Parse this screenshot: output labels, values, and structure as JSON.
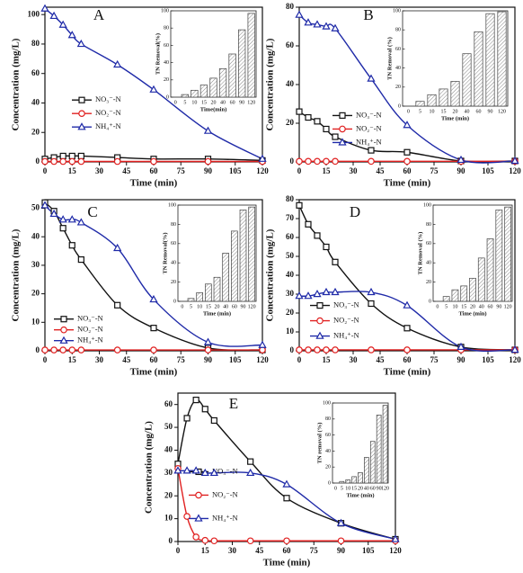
{
  "chart_data": [
    {
      "type": "line",
      "label": "A",
      "xlabel": "Time (min)",
      "ylabel": "Concentration (mg/L)",
      "x": [
        0,
        5,
        10,
        15,
        20,
        40,
        60,
        90,
        120
      ],
      "xlim": [
        0,
        120
      ],
      "xticks": [
        0,
        15,
        30,
        45,
        60,
        75,
        90,
        105,
        120
      ],
      "ylim": [
        0,
        105
      ],
      "yticks": [
        0,
        20,
        40,
        60,
        80,
        100
      ],
      "series": [
        {
          "name": "NO₃⁻-N",
          "color": "#111111",
          "marker": "square",
          "values": [
            2,
            3,
            4,
            4,
            4,
            3,
            2,
            2,
            1
          ]
        },
        {
          "name": "NO₂⁻-N",
          "color": "#e02020",
          "marker": "circle",
          "values": [
            0.3,
            0.3,
            0.3,
            0.3,
            0.3,
            0.3,
            0.3,
            0.3,
            0.3
          ]
        },
        {
          "name": "NH₄⁺-N",
          "color": "#1f2aa8",
          "marker": "triangle",
          "values": [
            104,
            99,
            93,
            86,
            80,
            66,
            49,
            21,
            2
          ]
        }
      ],
      "inset": {
        "type": "bar",
        "xlabel": "Time(min)",
        "ylabel": "TN Removal(%)",
        "categories": [
          "0",
          "5",
          "10",
          "15",
          "20",
          "40",
          "60",
          "90",
          "120"
        ],
        "values": [
          0,
          3,
          8,
          14,
          22,
          33,
          50,
          78,
          97
        ],
        "ylim": [
          0,
          100
        ],
        "yticks": [
          0,
          20,
          40,
          60,
          80,
          100
        ]
      }
    },
    {
      "type": "line",
      "label": "B",
      "xlabel": "Time (min)",
      "ylabel": "Concentration (mg/L)",
      "x": [
        0,
        5,
        10,
        15,
        20,
        40,
        60,
        90,
        120
      ],
      "xlim": [
        0,
        120
      ],
      "xticks": [
        0,
        15,
        30,
        45,
        60,
        75,
        90,
        105,
        120
      ],
      "ylim": [
        0,
        80
      ],
      "yticks": [
        0,
        20,
        40,
        60,
        80
      ],
      "series": [
        {
          "name": "NO₃⁻-N",
          "color": "#111111",
          "marker": "square",
          "values": [
            26,
            23,
            21,
            17,
            13,
            6,
            5,
            0.5,
            0.5
          ]
        },
        {
          "name": "NO₂⁻-N",
          "color": "#e02020",
          "marker": "circle",
          "values": [
            0.3,
            0.3,
            0.3,
            0.3,
            0.3,
            0.3,
            0.3,
            0.3,
            0.3
          ]
        },
        {
          "name": "NH₄⁺-N",
          "color": "#1f2aa8",
          "marker": "triangle",
          "values": [
            76,
            72,
            71,
            70,
            69,
            43,
            19,
            1,
            0.5
          ]
        }
      ],
      "inset": {
        "type": "bar",
        "xlabel": "Time (min)",
        "ylabel": "TN Removal (%)",
        "categories": [
          "0",
          "5",
          "10",
          "15",
          "20",
          "40",
          "60",
          "90",
          "120"
        ],
        "values": [
          0,
          5,
          12,
          18,
          26,
          55,
          78,
          97,
          99
        ],
        "ylim": [
          0,
          100
        ],
        "yticks": [
          0,
          20,
          40,
          60,
          80,
          100
        ]
      }
    },
    {
      "type": "line",
      "label": "C",
      "xlabel": "Time (min)",
      "ylabel": "Concentration (mg/L)",
      "x": [
        0,
        5,
        10,
        15,
        20,
        40,
        60,
        90,
        120
      ],
      "xlim": [
        0,
        120
      ],
      "xticks": [
        0,
        15,
        30,
        45,
        60,
        75,
        90,
        105,
        120
      ],
      "ylim": [
        0,
        53
      ],
      "yticks": [
        0,
        10,
        20,
        30,
        40,
        50
      ],
      "series": [
        {
          "name": "NO₃⁻-N",
          "color": "#111111",
          "marker": "square",
          "values": [
            52,
            49,
            43,
            37,
            32,
            16,
            8,
            1,
            0.3
          ]
        },
        {
          "name": "NO₂⁻-N",
          "color": "#e02020",
          "marker": "circle",
          "values": [
            0.3,
            0.3,
            0.3,
            0.3,
            0.3,
            0.3,
            0.3,
            0.3,
            0.3
          ]
        },
        {
          "name": "NH₄⁺-N",
          "color": "#1f2aa8",
          "marker": "triangle",
          "values": [
            51,
            48,
            46,
            46,
            45,
            36,
            18,
            3,
            2
          ]
        }
      ],
      "inset": {
        "type": "bar",
        "xlabel": "Time (min)",
        "ylabel": "TN Removal(%)",
        "categories": [
          "0",
          "5",
          "10",
          "15",
          "20",
          "40",
          "60",
          "90",
          "120"
        ],
        "values": [
          0,
          3,
          9,
          18,
          25,
          50,
          73,
          95,
          98
        ],
        "ylim": [
          0,
          100
        ],
        "yticks": [
          0,
          20,
          40,
          60,
          80,
          100
        ]
      }
    },
    {
      "type": "line",
      "label": "D",
      "xlabel": "Time (min)",
      "ylabel": "Concentration (mg/L)",
      "x": [
        0,
        5,
        10,
        15,
        20,
        40,
        60,
        90,
        120
      ],
      "xlim": [
        0,
        120
      ],
      "xticks": [
        0,
        15,
        30,
        45,
        60,
        75,
        90,
        105,
        120
      ],
      "ylim": [
        0,
        80
      ],
      "yticks": [
        0,
        10,
        20,
        30,
        40,
        50,
        60,
        70,
        80
      ],
      "series": [
        {
          "name": "NO₃⁻-N",
          "color": "#111111",
          "marker": "square",
          "values": [
            77,
            67,
            61,
            55,
            47,
            25,
            12,
            2,
            0.5
          ]
        },
        {
          "name": "NO₂⁻-N",
          "color": "#e02020",
          "marker": "circle",
          "values": [
            0.5,
            0.5,
            0.5,
            0.5,
            0.5,
            0.5,
            0.5,
            0.5,
            0.5
          ]
        },
        {
          "name": "NH₄⁺-N",
          "color": "#1f2aa8",
          "marker": "triangle",
          "values": [
            29,
            29,
            30,
            31,
            31,
            31,
            24,
            2,
            0.5
          ]
        }
      ],
      "inset": {
        "type": "bar",
        "xlabel": "Time (min)",
        "ylabel": "TN Removal (%)",
        "categories": [
          "0",
          "5",
          "10",
          "15",
          "20",
          "40",
          "60",
          "90",
          "120"
        ],
        "values": [
          0,
          5,
          12,
          16,
          24,
          45,
          65,
          95,
          98
        ],
        "ylim": [
          0,
          100
        ],
        "yticks": [
          0,
          20,
          40,
          60,
          80,
          100
        ]
      }
    },
    {
      "type": "line",
      "label": "E",
      "xlabel": "Time (min)",
      "ylabel": "Concentration (mg/L)",
      "x": [
        0,
        5,
        10,
        15,
        20,
        40,
        60,
        90,
        120
      ],
      "xlim": [
        0,
        120
      ],
      "xticks": [
        0,
        15,
        30,
        45,
        60,
        75,
        90,
        105,
        120
      ],
      "ylim": [
        0,
        65
      ],
      "yticks": [
        0,
        10,
        20,
        30,
        40,
        50,
        60
      ],
      "series": [
        {
          "name": "NO₃⁻-N",
          "color": "#111111",
          "marker": "square",
          "values": [
            34,
            54,
            62,
            58,
            53,
            35,
            19,
            8,
            1
          ]
        },
        {
          "name": "NO₂⁻-N",
          "color": "#e02020",
          "marker": "circle",
          "values": [
            32,
            11,
            2,
            0.5,
            0.3,
            0.3,
            0.3,
            0.3,
            0.3
          ]
        },
        {
          "name": "NH₄⁺-N",
          "color": "#1f2aa8",
          "marker": "triangle",
          "values": [
            31,
            31,
            31,
            30,
            30,
            30,
            25,
            8,
            1
          ]
        }
      ],
      "inset": {
        "type": "bar",
        "xlabel": "Time (min)",
        "ylabel": "TN removal (%)",
        "categories": [
          "0",
          "5",
          "10",
          "15",
          "20",
          "40",
          "60",
          "90",
          "120"
        ],
        "values": [
          0,
          2,
          4,
          8,
          13,
          32,
          52,
          85,
          97
        ],
        "ylim": [
          0,
          100
        ],
        "yticks": [
          0,
          20,
          40,
          60,
          80,
          100
        ]
      }
    }
  ]
}
